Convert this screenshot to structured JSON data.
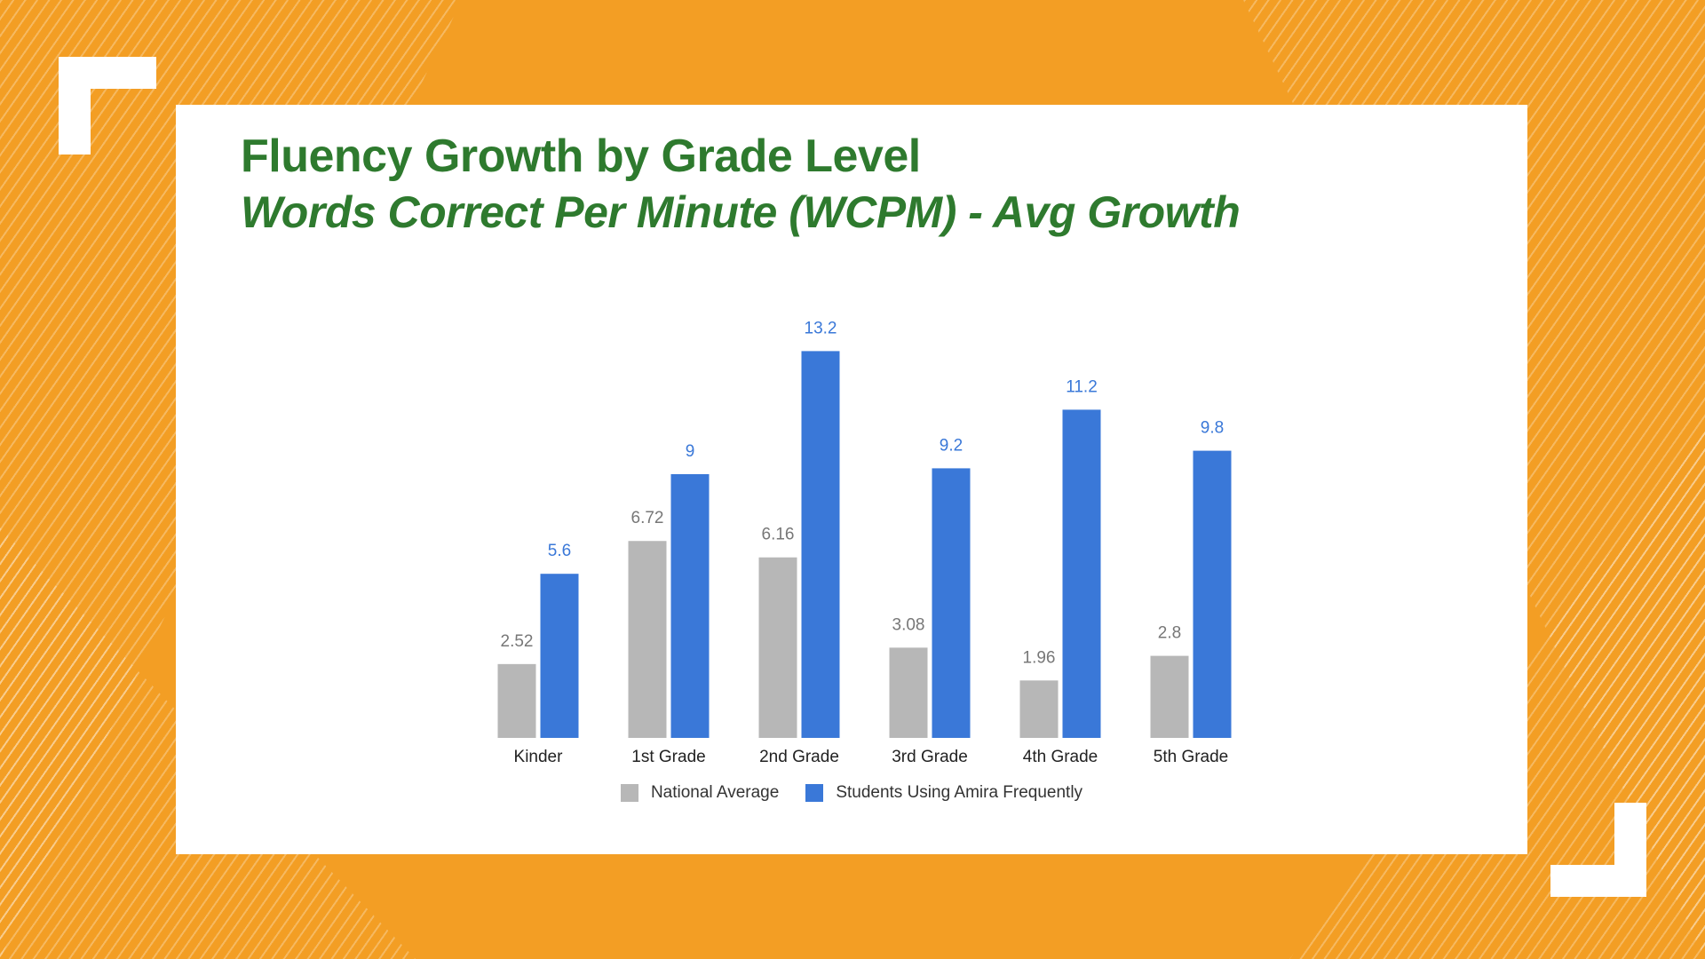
{
  "colors": {
    "background": "#f39e24",
    "national": "#b7b7b7",
    "amira": "#3a78d8",
    "title": "#2e7a2e"
  },
  "chart_data": {
    "type": "bar",
    "title": "Fluency Growth by Grade  Level",
    "subtitle": "Words Correct Per Minute (WCPM) - Avg Growth",
    "categories": [
      "Kinder",
      "1st Grade",
      "2nd Grade",
      "3rd Grade",
      "4th Grade",
      "5th Grade"
    ],
    "series": [
      {
        "name": "National Average",
        "color": "#b7b7b7",
        "values": [
          2.52,
          6.72,
          6.16,
          3.08,
          1.96,
          2.8
        ],
        "labels": [
          "2.52",
          "6.72",
          "6.16",
          "3.08",
          "1.96",
          "2.8"
        ]
      },
      {
        "name": "Students Using Amira Frequently",
        "color": "#3a78d8",
        "values": [
          5.6,
          9,
          13.2,
          9.2,
          11.2,
          9.8
        ],
        "labels": [
          "5.6",
          "9",
          "13.2",
          "9.2",
          "11.2",
          "9.8"
        ]
      }
    ],
    "ylim": [
      0,
      14
    ],
    "grid": false,
    "legend": "bottom"
  }
}
